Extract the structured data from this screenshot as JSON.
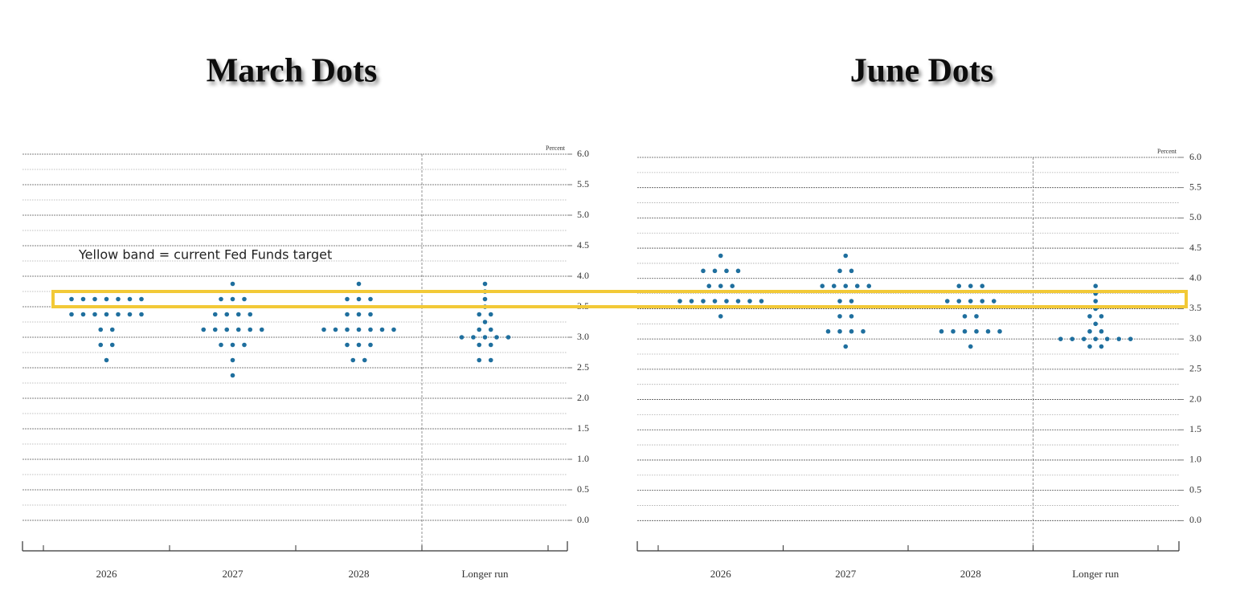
{
  "annotation": "Yellow band = current Fed Funds target",
  "band": {
    "range": [
      3.5,
      3.75
    ],
    "color": "#f2c937"
  },
  "chart_data": [
    {
      "type": "dot",
      "title": "March Dots",
      "y_label": "Percent",
      "categories": [
        "2026",
        "2027",
        "2028",
        "Longer run"
      ],
      "color": "#1f6f9e",
      "dots": [
        [
          {
            "value": 3.625,
            "count": 7
          },
          {
            "value": 3.375,
            "count": 7
          },
          {
            "value": 3.125,
            "count": 2
          },
          {
            "value": 2.875,
            "count": 2
          },
          {
            "value": 2.625,
            "count": 1
          }
        ],
        [
          {
            "value": 3.875,
            "count": 1
          },
          {
            "value": 3.625,
            "count": 3
          },
          {
            "value": 3.375,
            "count": 4
          },
          {
            "value": 3.125,
            "count": 6
          },
          {
            "value": 2.875,
            "count": 3
          },
          {
            "value": 2.625,
            "count": 1
          },
          {
            "value": 2.375,
            "count": 1
          }
        ],
        [
          {
            "value": 3.875,
            "count": 1
          },
          {
            "value": 3.625,
            "count": 3
          },
          {
            "value": 3.375,
            "count": 3
          },
          {
            "value": 3.125,
            "count": 7
          },
          {
            "value": 2.875,
            "count": 3
          },
          {
            "value": 2.625,
            "count": 2
          }
        ],
        [
          {
            "value": 3.875,
            "count": 1
          },
          {
            "value": 3.75,
            "count": 1
          },
          {
            "value": 3.625,
            "count": 1
          },
          {
            "value": 3.5,
            "count": 1
          },
          {
            "value": 3.375,
            "count": 2
          },
          {
            "value": 3.25,
            "count": 1
          },
          {
            "value": 3.125,
            "count": 2
          },
          {
            "value": 3.0,
            "count": 5
          },
          {
            "value": 2.875,
            "count": 2
          },
          {
            "value": 2.625,
            "count": 2
          }
        ]
      ],
      "ylim": [
        -0.5,
        6.0
      ],
      "yticks": [
        {
          "value": 0,
          "label": "0.0"
        },
        0.5,
        {
          "value": 1,
          "label": "1.0"
        },
        1.5,
        {
          "value": 2,
          "label": "2.0"
        },
        2.5,
        {
          "value": 3,
          "label": "3.0"
        },
        3.5,
        {
          "value": 4,
          "label": "4.0"
        },
        4.5,
        {
          "value": 5,
          "label": "5.0"
        },
        5.5,
        {
          "value": 6,
          "label": "6.0"
        }
      ],
      "minor_yticks": [
        0.25,
        0.75,
        1.25,
        1.75,
        2.25,
        2.75,
        3.25,
        3.75,
        4.25,
        4.75,
        5.25,
        5.75
      ],
      "grid": true
    },
    {
      "type": "dot",
      "title": "June Dots",
      "y_label": "Percent",
      "categories": [
        "2026",
        "2027",
        "2028",
        "Longer run"
      ],
      "color": "#1f6f9e",
      "dots": [
        [
          {
            "value": 4.375,
            "count": 1
          },
          {
            "value": 4.125,
            "count": 4
          },
          {
            "value": 3.875,
            "count": 3
          },
          {
            "value": 3.625,
            "count": 8
          },
          {
            "value": 3.375,
            "count": 1
          }
        ],
        [
          {
            "value": 4.375,
            "count": 1
          },
          {
            "value": 4.125,
            "count": 2
          },
          {
            "value": 3.875,
            "count": 5
          },
          {
            "value": 3.625,
            "count": 2
          },
          {
            "value": 3.375,
            "count": 2
          },
          {
            "value": 3.125,
            "count": 4
          },
          {
            "value": 2.875,
            "count": 1
          }
        ],
        [
          {
            "value": 3.875,
            "count": 3
          },
          {
            "value": 3.625,
            "count": 5
          },
          {
            "value": 3.375,
            "count": 2
          },
          {
            "value": 3.125,
            "count": 6
          },
          {
            "value": 2.875,
            "count": 1
          }
        ],
        [
          {
            "value": 3.875,
            "count": 1
          },
          {
            "value": 3.75,
            "count": 1
          },
          {
            "value": 3.625,
            "count": 1
          },
          {
            "value": 3.5,
            "count": 1
          },
          {
            "value": 3.375,
            "count": 2
          },
          {
            "value": 3.25,
            "count": 1
          },
          {
            "value": 3.125,
            "count": 2
          },
          {
            "value": 3.0,
            "count": 7
          },
          {
            "value": 2.875,
            "count": 2
          }
        ]
      ],
      "ylim": [
        -0.5,
        6.0
      ],
      "yticks": [
        {
          "value": 0,
          "label": "0.0"
        },
        0.5,
        {
          "value": 1,
          "label": "1.0"
        },
        1.5,
        {
          "value": 2,
          "label": "2.0"
        },
        2.5,
        {
          "value": 3,
          "label": "3.0"
        },
        3.5,
        {
          "value": 4,
          "label": "4.0"
        },
        4.5,
        {
          "value": 5,
          "label": "5.0"
        },
        5.5,
        {
          "value": 6,
          "label": "6.0"
        }
      ],
      "minor_yticks": [
        0.25,
        0.75,
        1.25,
        1.75,
        2.25,
        2.75,
        3.25,
        3.75,
        4.25,
        4.75,
        5.25,
        5.75
      ],
      "grid": true
    }
  ]
}
